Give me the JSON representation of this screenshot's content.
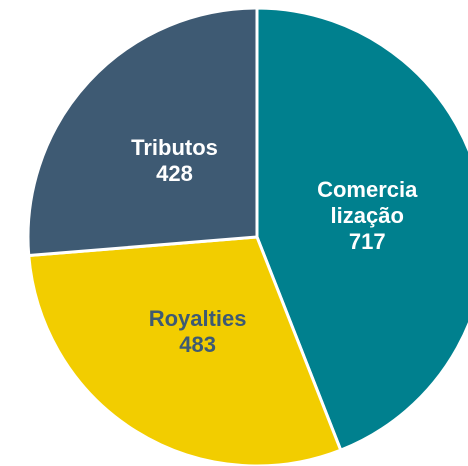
{
  "chart_data": {
    "type": "pie",
    "categories": [
      "Comercia\nlização",
      "Royalties",
      "Tributos"
    ],
    "values": [
      717,
      483,
      428
    ],
    "colors": [
      "#00808e",
      "#f2cd00",
      "#3e5a73"
    ],
    "label_colors": [
      "#ffffff",
      "#3e5a73",
      "#ffffff"
    ]
  }
}
